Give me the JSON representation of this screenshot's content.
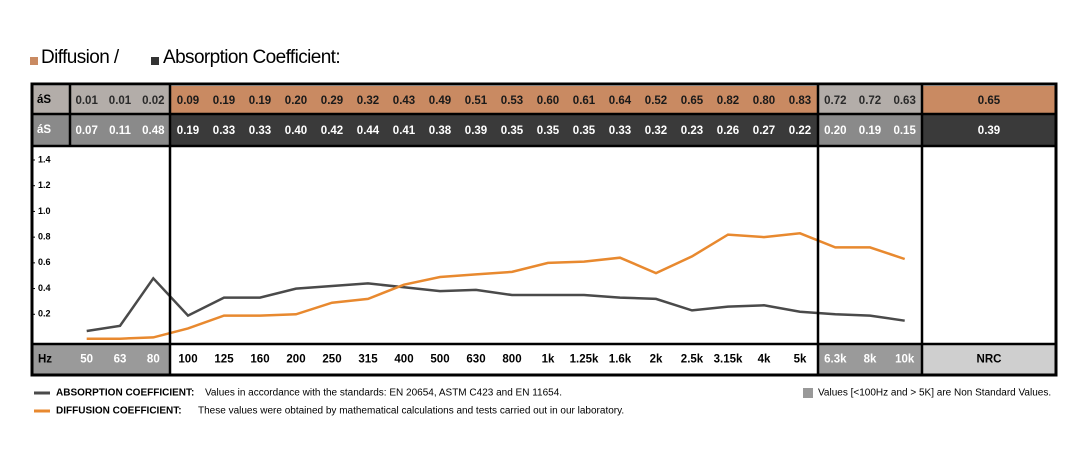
{
  "legend": {
    "diffusion": "Diffusion /",
    "absorption": "Absorption Coefficient:"
  },
  "chart_data": {
    "type": "line",
    "category_label": "Hz",
    "categories": [
      "50",
      "63",
      "80",
      "100",
      "125",
      "160",
      "200",
      "250",
      "315",
      "400",
      "500",
      "630",
      "800",
      "1k",
      "1.25k",
      "1.6k",
      "2k",
      "2.5k",
      "3.15k",
      "4k",
      "5k",
      "6.3k",
      "8k",
      "10k"
    ],
    "nrc_label": "NRC",
    "ylim": [
      0,
      1.4
    ],
    "yticks": [
      0.2,
      0.4,
      0.6,
      0.8,
      {
        "value": 1.0,
        "label": "1.0"
      },
      1.2,
      1.4
    ],
    "series": [
      {
        "name": "Diffusion",
        "row_label": "áS",
        "color": "#e8892f",
        "values": [
          0.01,
          0.01,
          0.02,
          0.09,
          0.19,
          0.19,
          0.2,
          0.29,
          0.32,
          0.43,
          0.49,
          0.51,
          0.53,
          0.6,
          0.61,
          0.64,
          0.52,
          0.65,
          0.82,
          0.8,
          0.83,
          0.72,
          0.72,
          0.63
        ],
        "value_labels": [
          "0.01",
          "0.01",
          "0.02",
          "0.09",
          "0.19",
          "0.19",
          "0.20",
          "0.29",
          "0.32",
          "0.43",
          "0.49",
          "0.51",
          "0.53",
          "0.60",
          "0.61",
          "0.64",
          "0.52",
          "0.65",
          "0.82",
          "0.80",
          "0.83",
          "0.72",
          "0.72",
          "0.63"
        ],
        "nrc": 0.65
      },
      {
        "name": "Absorption",
        "row_label": "áS",
        "color": "#4a4a4a",
        "values": [
          0.07,
          0.11,
          0.48,
          0.19,
          0.33,
          0.33,
          0.4,
          0.42,
          0.44,
          0.41,
          0.38,
          0.39,
          0.35,
          0.35,
          0.35,
          0.33,
          0.32,
          0.23,
          0.26,
          0.27,
          0.22,
          0.2,
          0.19,
          0.15
        ],
        "value_labels": [
          "0.07",
          "0.11",
          "0.48",
          "0.19",
          "0.33",
          "0.33",
          "0.40",
          "0.42",
          "0.44",
          "0.41",
          "0.38",
          "0.39",
          "0.35",
          "0.35",
          "0.35",
          "0.33",
          "0.32",
          "0.23",
          "0.26",
          "0.27",
          "0.22",
          "0.20",
          "0.19",
          "0.15"
        ],
        "nrc": 0.39
      }
    ]
  },
  "notes": {
    "absorption_title": "ABSORPTION COEFFICIENT:",
    "absorption_text": "Values in accordance with the standards: EN 20654, ASTM C423 and EN 11654.",
    "diffusion_title": "DIFFUSION COEFFICIENT:",
    "diffusion_text": "These values were obtained by mathematical calculations and tests carried out in our laboratory.",
    "nonstandard": "Values [<100Hz and > 5K] are Non Standard Values."
  }
}
